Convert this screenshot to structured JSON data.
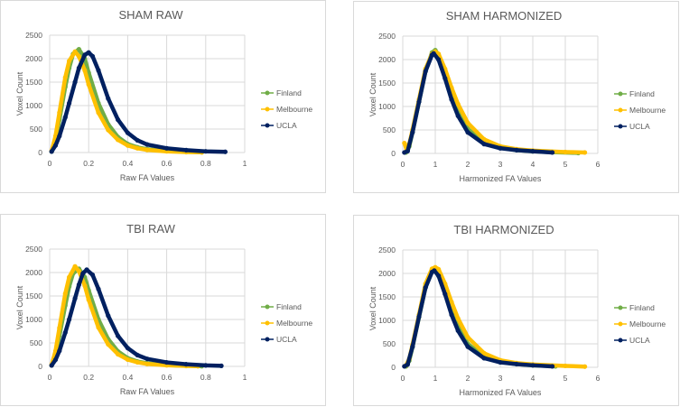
{
  "chart_data": [
    {
      "type": "scatter",
      "title": "SHAM RAW",
      "xlabel": "Raw FA Values",
      "ylabel": "Voxel Count",
      "xlim": [
        0,
        1
      ],
      "ylim": [
        0,
        2500
      ],
      "xticks": [
        "0",
        "0.2",
        "0.4",
        "0.6",
        "0.8",
        "1"
      ],
      "yticks": [
        "0",
        "500",
        "1000",
        "1500",
        "2000",
        "2500"
      ],
      "grid": true,
      "legend": "right",
      "series": [
        {
          "name": "Finland",
          "color": "#70ad47",
          "points": [
            [
              0.01,
              20
            ],
            [
              0.03,
              250
            ],
            [
              0.05,
              700
            ],
            [
              0.08,
              1400
            ],
            [
              0.1,
              1800
            ],
            [
              0.12,
              2100
            ],
            [
              0.15,
              2200
            ],
            [
              0.18,
              2000
            ],
            [
              0.2,
              1700
            ],
            [
              0.25,
              1050
            ],
            [
              0.3,
              600
            ],
            [
              0.35,
              330
            ],
            [
              0.4,
              180
            ],
            [
              0.45,
              110
            ],
            [
              0.5,
              70
            ],
            [
              0.6,
              35
            ],
            [
              0.7,
              15
            ],
            [
              0.78,
              5
            ]
          ]
        },
        {
          "name": "Melbourne",
          "color": "#ffc000",
          "points": [
            [
              0.01,
              30
            ],
            [
              0.03,
              350
            ],
            [
              0.05,
              850
            ],
            [
              0.08,
              1600
            ],
            [
              0.1,
              1950
            ],
            [
              0.13,
              2150
            ],
            [
              0.15,
              2050
            ],
            [
              0.18,
              1750
            ],
            [
              0.2,
              1450
            ],
            [
              0.25,
              850
            ],
            [
              0.3,
              480
            ],
            [
              0.35,
              270
            ],
            [
              0.4,
              150
            ],
            [
              0.45,
              90
            ],
            [
              0.5,
              55
            ],
            [
              0.6,
              25
            ],
            [
              0.7,
              10
            ],
            [
              0.78,
              5
            ]
          ]
        },
        {
          "name": "UCLA",
          "color": "#002060",
          "points": [
            [
              0.01,
              20
            ],
            [
              0.03,
              150
            ],
            [
              0.05,
              350
            ],
            [
              0.08,
              750
            ],
            [
              0.1,
              1050
            ],
            [
              0.13,
              1500
            ],
            [
              0.15,
              1800
            ],
            [
              0.18,
              2080
            ],
            [
              0.2,
              2130
            ],
            [
              0.22,
              2050
            ],
            [
              0.25,
              1750
            ],
            [
              0.3,
              1150
            ],
            [
              0.35,
              700
            ],
            [
              0.4,
              420
            ],
            [
              0.45,
              260
            ],
            [
              0.5,
              170
            ],
            [
              0.6,
              90
            ],
            [
              0.7,
              50
            ],
            [
              0.8,
              25
            ],
            [
              0.9,
              15
            ]
          ]
        }
      ]
    },
    {
      "type": "scatter",
      "title": "SHAM HARMONIZED",
      "xlabel": "Harmonized  FA Values",
      "ylabel": "Voxel Count",
      "xlim": [
        0,
        6
      ],
      "ylim": [
        0,
        2500
      ],
      "xticks": [
        "0",
        "1",
        "2",
        "3",
        "4",
        "5",
        "6"
      ],
      "yticks": [
        "0",
        "500",
        "1000",
        "1500",
        "2000",
        "2500"
      ],
      "grid": true,
      "legend": "right",
      "series": [
        {
          "name": "Finland",
          "color": "#70ad47",
          "points": [
            [
              0.1,
              20
            ],
            [
              0.2,
              150
            ],
            [
              0.3,
              450
            ],
            [
              0.5,
              1100
            ],
            [
              0.7,
              1750
            ],
            [
              0.9,
              2150
            ],
            [
              1.0,
              2200
            ],
            [
              1.1,
              2100
            ],
            [
              1.3,
              1700
            ],
            [
              1.5,
              1250
            ],
            [
              1.7,
              900
            ],
            [
              2.0,
              520
            ],
            [
              2.5,
              230
            ],
            [
              3,
              120
            ],
            [
              3.5,
              70
            ],
            [
              4,
              45
            ],
            [
              4.5,
              30
            ],
            [
              5.4,
              10
            ]
          ]
        },
        {
          "name": "Melbourne",
          "color": "#ffc000",
          "points": [
            [
              0.05,
              220
            ],
            [
              0.12,
              80
            ],
            [
              0.2,
              200
            ],
            [
              0.3,
              500
            ],
            [
              0.5,
              1150
            ],
            [
              0.7,
              1800
            ],
            [
              0.9,
              2120
            ],
            [
              1.0,
              2170
            ],
            [
              1.1,
              2120
            ],
            [
              1.3,
              1800
            ],
            [
              1.5,
              1400
            ],
            [
              1.7,
              1050
            ],
            [
              2.0,
              650
            ],
            [
              2.5,
              300
            ],
            [
              3,
              150
            ],
            [
              3.5,
              90
            ],
            [
              4,
              60
            ],
            [
              5,
              30
            ],
            [
              5.6,
              20
            ]
          ]
        },
        {
          "name": "UCLA",
          "color": "#002060",
          "points": [
            [
              0.05,
              20
            ],
            [
              0.15,
              50
            ],
            [
              0.3,
              450
            ],
            [
              0.5,
              1100
            ],
            [
              0.7,
              1750
            ],
            [
              0.9,
              2100
            ],
            [
              0.95,
              2130
            ],
            [
              1.1,
              2000
            ],
            [
              1.3,
              1600
            ],
            [
              1.5,
              1150
            ],
            [
              1.7,
              800
            ],
            [
              2.0,
              450
            ],
            [
              2.5,
              200
            ],
            [
              3,
              110
            ],
            [
              3.5,
              70
            ],
            [
              4,
              45
            ],
            [
              4.6,
              20
            ]
          ]
        }
      ]
    },
    {
      "type": "scatter",
      "title": "TBI RAW",
      "xlabel": "Raw FA Values",
      "ylabel": "Voxel Count",
      "xlim": [
        0,
        1
      ],
      "ylim": [
        0,
        2500
      ],
      "xticks": [
        "0",
        "0.2",
        "0.4",
        "0.6",
        "0.8",
        "1"
      ],
      "yticks": [
        "0",
        "500",
        "1000",
        "1500",
        "2000",
        "2500"
      ],
      "grid": true,
      "legend": "right",
      "series": [
        {
          "name": "Finland",
          "color": "#70ad47",
          "points": [
            [
              0.01,
              20
            ],
            [
              0.03,
              230
            ],
            [
              0.05,
              650
            ],
            [
              0.08,
              1300
            ],
            [
              0.1,
              1700
            ],
            [
              0.12,
              1980
            ],
            [
              0.15,
              2080
            ],
            [
              0.18,
              1900
            ],
            [
              0.2,
              1620
            ],
            [
              0.25,
              1000
            ],
            [
              0.3,
              580
            ],
            [
              0.35,
              320
            ],
            [
              0.4,
              175
            ],
            [
              0.45,
              105
            ],
            [
              0.5,
              65
            ],
            [
              0.6,
              30
            ],
            [
              0.7,
              12
            ],
            [
              0.78,
              5
            ]
          ]
        },
        {
          "name": "Melbourne",
          "color": "#ffc000",
          "points": [
            [
              0.01,
              30
            ],
            [
              0.03,
              330
            ],
            [
              0.05,
              820
            ],
            [
              0.08,
              1550
            ],
            [
              0.1,
              1900
            ],
            [
              0.13,
              2130
            ],
            [
              0.15,
              2030
            ],
            [
              0.18,
              1720
            ],
            [
              0.2,
              1420
            ],
            [
              0.25,
              830
            ],
            [
              0.3,
              470
            ],
            [
              0.35,
              260
            ],
            [
              0.4,
              145
            ],
            [
              0.45,
              88
            ],
            [
              0.5,
              52
            ],
            [
              0.6,
              24
            ],
            [
              0.7,
              10
            ],
            [
              0.76,
              5
            ]
          ]
        },
        {
          "name": "UCLA",
          "color": "#002060",
          "points": [
            [
              0.01,
              20
            ],
            [
              0.03,
              140
            ],
            [
              0.05,
              330
            ],
            [
              0.08,
              720
            ],
            [
              0.1,
              1000
            ],
            [
              0.13,
              1450
            ],
            [
              0.15,
              1740
            ],
            [
              0.17,
              1980
            ],
            [
              0.19,
              2060
            ],
            [
              0.22,
              1950
            ],
            [
              0.25,
              1650
            ],
            [
              0.3,
              1080
            ],
            [
              0.35,
              650
            ],
            [
              0.4,
              390
            ],
            [
              0.45,
              240
            ],
            [
              0.5,
              160
            ],
            [
              0.6,
              85
            ],
            [
              0.7,
              45
            ],
            [
              0.8,
              22
            ],
            [
              0.88,
              12
            ]
          ]
        }
      ]
    },
    {
      "type": "scatter",
      "title": "TBI HARMONIZED",
      "xlabel": "Harmonized  FA Values",
      "ylabel": "Voxel Count",
      "xlim": [
        0,
        6
      ],
      "ylim": [
        0,
        2500
      ],
      "xticks": [
        "0",
        "1",
        "2",
        "3",
        "4",
        "5",
        "6"
      ],
      "yticks": [
        "0",
        "500",
        "1000",
        "1500",
        "2000",
        "2500"
      ],
      "grid": true,
      "legend": "right",
      "series": [
        {
          "name": "Finland",
          "color": "#70ad47",
          "points": [
            [
              0.1,
              20
            ],
            [
              0.2,
              140
            ],
            [
              0.3,
              430
            ],
            [
              0.5,
              1070
            ],
            [
              0.7,
              1700
            ],
            [
              0.9,
              2050
            ],
            [
              1.0,
              2100
            ],
            [
              1.1,
              2020
            ],
            [
              1.3,
              1640
            ],
            [
              1.5,
              1200
            ],
            [
              1.7,
              860
            ],
            [
              2.0,
              500
            ],
            [
              2.5,
              220
            ],
            [
              3,
              115
            ],
            [
              3.5,
              68
            ],
            [
              4,
              42
            ],
            [
              4.5,
              28
            ],
            [
              4.7,
              20
            ]
          ]
        },
        {
          "name": "Melbourne",
          "color": "#ffc000",
          "points": [
            [
              0.1,
              40
            ],
            [
              0.2,
              180
            ],
            [
              0.3,
              480
            ],
            [
              0.5,
              1120
            ],
            [
              0.7,
              1780
            ],
            [
              0.9,
              2100
            ],
            [
              1.0,
              2130
            ],
            [
              1.1,
              2090
            ],
            [
              1.3,
              1780
            ],
            [
              1.5,
              1390
            ],
            [
              1.7,
              1040
            ],
            [
              2.0,
              640
            ],
            [
              2.5,
              300
            ],
            [
              3,
              150
            ],
            [
              3.5,
              90
            ],
            [
              4,
              60
            ],
            [
              5,
              30
            ],
            [
              5.6,
              15
            ]
          ]
        },
        {
          "name": "UCLA",
          "color": "#002060",
          "points": [
            [
              0.05,
              20
            ],
            [
              0.15,
              60
            ],
            [
              0.3,
              440
            ],
            [
              0.5,
              1080
            ],
            [
              0.7,
              1700
            ],
            [
              0.9,
              2030
            ],
            [
              0.97,
              2060
            ],
            [
              1.1,
              1950
            ],
            [
              1.3,
              1560
            ],
            [
              1.5,
              1120
            ],
            [
              1.7,
              780
            ],
            [
              2.0,
              440
            ],
            [
              2.5,
              195
            ],
            [
              3,
              105
            ],
            [
              3.5,
              68
            ],
            [
              4,
              42
            ],
            [
              4.6,
              20
            ]
          ]
        }
      ]
    }
  ]
}
